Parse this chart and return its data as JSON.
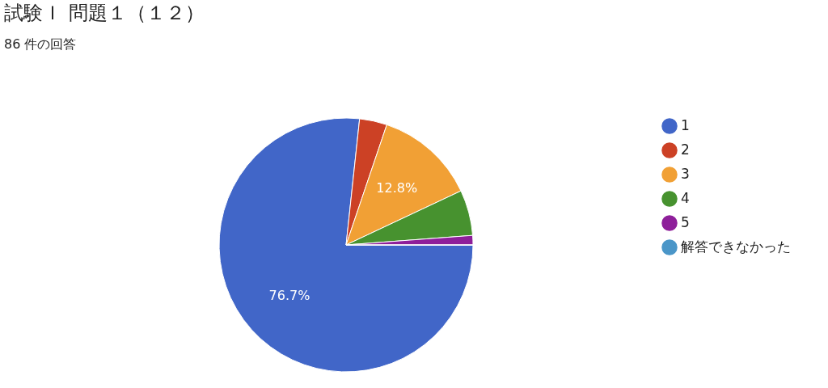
{
  "chart_data": {
    "type": "pie",
    "title": "試験Ｉ 問題１（１２）",
    "subtitle": "86 件の回答",
    "categories": [
      "1",
      "2",
      "3",
      "4",
      "5",
      "解答できなかった"
    ],
    "values": [
      76.7,
      3.5,
      12.8,
      5.8,
      1.2,
      0
    ],
    "colors": [
      "#4166c8",
      "#cc4125",
      "#f1a035",
      "#47922f",
      "#8e1f9a",
      "#4a96c8"
    ],
    "value_labels": [
      "76.7%",
      null,
      "12.8%",
      null,
      null,
      null
    ],
    "legend": "right"
  }
}
